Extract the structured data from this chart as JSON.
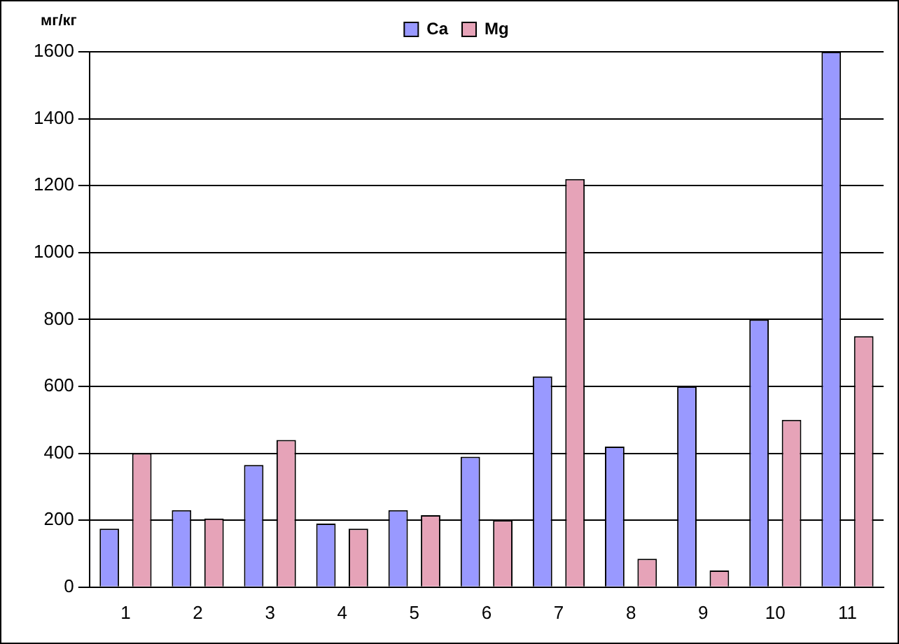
{
  "chart_data": {
    "type": "bar",
    "ylabel": "мг/кг",
    "categories": [
      "1",
      "2",
      "3",
      "4",
      "5",
      "6",
      "7",
      "8",
      "9",
      "10",
      "11"
    ],
    "series": [
      {
        "name": "Ca",
        "color": "#9999ff",
        "values": [
          175,
          230,
          365,
          190,
          230,
          390,
          630,
          420,
          600,
          800,
          1600
        ]
      },
      {
        "name": "Mg",
        "color": "#e6a3b8",
        "values": [
          400,
          205,
          440,
          175,
          215,
          200,
          1220,
          85,
          50,
          500,
          750
        ]
      }
    ],
    "ylim": [
      0,
      1600
    ],
    "yticks": [
      0,
      200,
      400,
      600,
      800,
      1000,
      1200,
      1400,
      1600
    ],
    "grid": "y",
    "legend": "top"
  }
}
